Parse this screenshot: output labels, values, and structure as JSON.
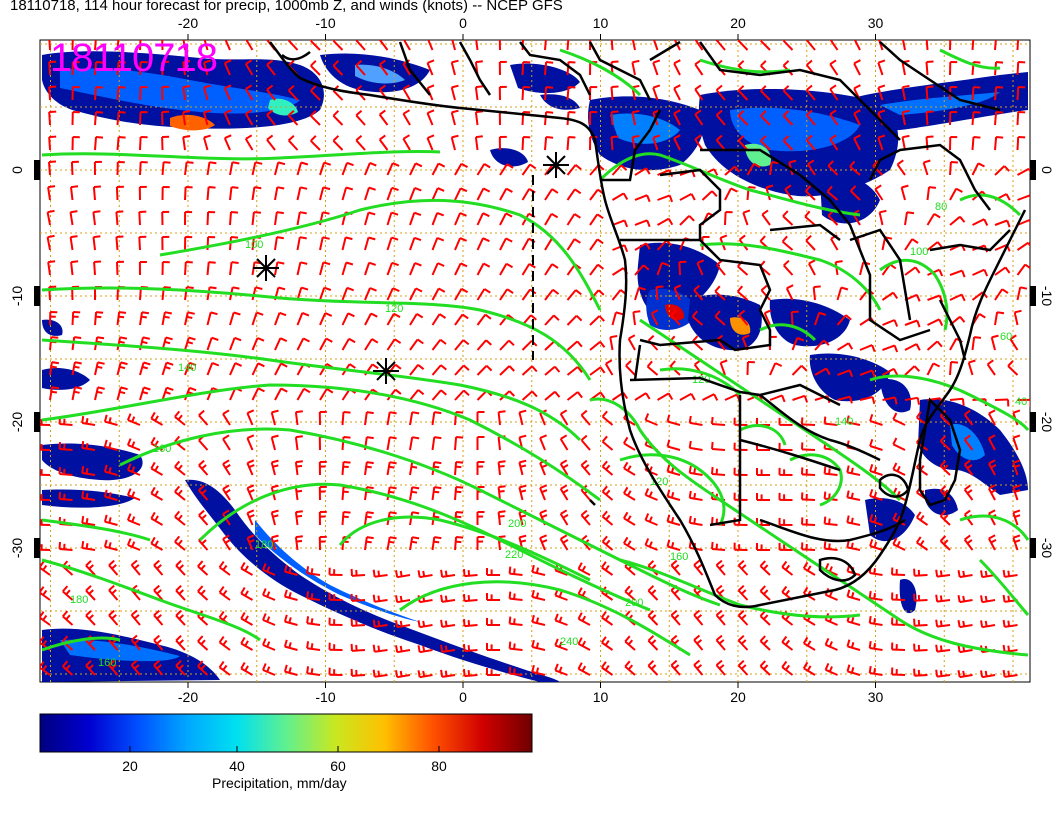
{
  "title": "18110718, 114 hour forecast for precip, 1000mb Z, and winds (knots) -- NCEP GFS",
  "stamp": "18110718",
  "axes": {
    "lon_labels": [
      "-20",
      "-10",
      "0",
      "10",
      "20",
      "30"
    ],
    "lat_labels": [
      "0",
      "-10",
      "-20",
      "-30"
    ]
  },
  "contour_labels": [
    "100",
    "120",
    "140",
    "160",
    "180",
    "200",
    "220",
    "240",
    "160",
    "180",
    "120",
    "140",
    "120",
    "100",
    "80",
    "60",
    "40",
    "200",
    "160"
  ],
  "colorbar": {
    "label": "Precipitation, mm/day",
    "ticks": [
      "20",
      "40",
      "60",
      "80"
    ],
    "colors": [
      "#00007f",
      "#0000c8",
      "#0040ff",
      "#0090ff",
      "#00d8ff",
      "#30f0c0",
      "#70f070",
      "#b8e830",
      "#e8d000",
      "#ff9000",
      "#ff4000",
      "#e00000",
      "#a00000",
      "#700000"
    ]
  },
  "colors": {
    "wind_barbs": "#ff0000",
    "contours": "#22dd22",
    "coastline": "#000000",
    "grid": "#d4a017",
    "stamp": "#ff00ff"
  }
}
